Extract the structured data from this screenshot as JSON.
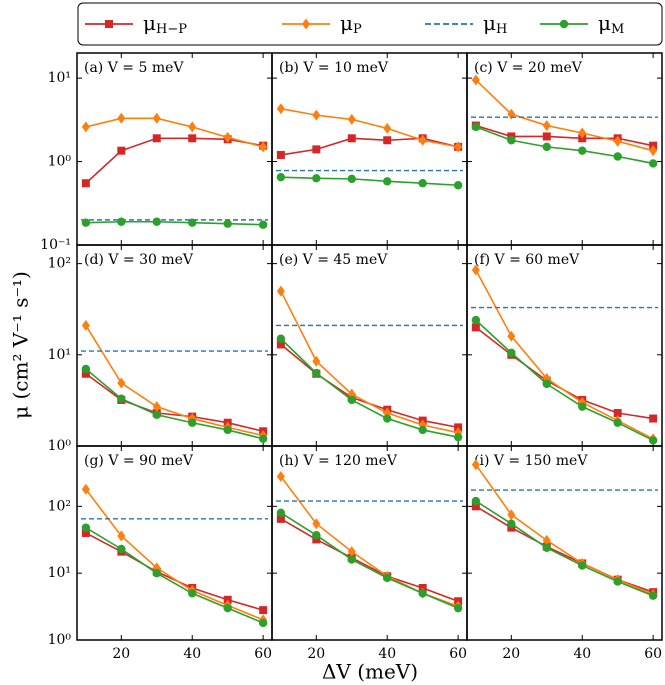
{
  "legend": [
    {
      "symbol": "μ",
      "sub": "H−P",
      "color": "#d62728",
      "marker": "square"
    },
    {
      "symbol": "μ",
      "sub": "P",
      "color": "#ff7f0e",
      "marker": "diamond"
    },
    {
      "symbol": "μ",
      "sub": "H",
      "color": "#1f77b4",
      "marker": "none",
      "dash": true
    },
    {
      "symbol": "μ",
      "sub": "M",
      "color": "#2ca02c",
      "marker": "circle"
    }
  ],
  "xlabel": "ΔV (meV)",
  "ylabel": "μ (cm² V⁻¹ s⁻¹)",
  "chart_data": [
    {
      "type": "line",
      "title": "(a) V = 5 meV",
      "yscale": "log",
      "x": [
        10,
        20,
        30,
        40,
        50,
        60
      ],
      "xlim": [
        7.5,
        62.5
      ],
      "ylim": [
        0.1,
        20
      ],
      "yticks": [
        {
          "value": 0.1,
          "label": "10⁻¹"
        },
        {
          "value": 1,
          "label": "10⁰"
        },
        {
          "value": 10,
          "label": "10¹"
        }
      ],
      "series": [
        {
          "values": [
            0.55,
            1.35,
            1.9,
            1.9,
            1.85,
            1.55
          ]
        },
        {
          "values": [
            2.6,
            3.3,
            3.3,
            2.6,
            1.95,
            1.5
          ]
        },
        {
          "value": 0.2
        },
        {
          "values": [
            0.185,
            0.19,
            0.19,
            0.185,
            0.18,
            0.175
          ]
        }
      ]
    },
    {
      "type": "line",
      "title": "(b) V = 10 meV",
      "yscale": "log",
      "x": [
        10,
        20,
        30,
        40,
        50,
        60
      ],
      "xlim": [
        7.5,
        62.5
      ],
      "ylim": [
        0.1,
        20
      ],
      "series": [
        {
          "values": [
            1.2,
            1.4,
            1.9,
            1.8,
            1.9,
            1.5
          ]
        },
        {
          "values": [
            4.3,
            3.6,
            3.2,
            2.5,
            1.8,
            1.5
          ]
        },
        {
          "value": 0.78
        },
        {
          "values": [
            0.65,
            0.63,
            0.62,
            0.58,
            0.55,
            0.52
          ]
        }
      ]
    },
    {
      "type": "line",
      "title": "(c) V = 20 meV",
      "yscale": "log",
      "x": [
        10,
        20,
        30,
        40,
        50,
        60
      ],
      "xlim": [
        7.5,
        62.5
      ],
      "ylim": [
        0.1,
        20
      ],
      "series": [
        {
          "values": [
            2.7,
            2.0,
            2.0,
            1.9,
            1.9,
            1.55
          ]
        },
        {
          "values": [
            9.5,
            3.7,
            2.7,
            2.2,
            1.75,
            1.35
          ]
        },
        {
          "value": 3.4
        },
        {
          "values": [
            2.6,
            1.8,
            1.5,
            1.35,
            1.15,
            0.95
          ]
        }
      ]
    },
    {
      "type": "line",
      "title": "(d) V = 30 meV",
      "yscale": "log",
      "x": [
        10,
        20,
        30,
        40,
        50,
        60
      ],
      "xlim": [
        7.5,
        62.5
      ],
      "ylim": [
        1,
        160
      ],
      "yticks": [
        {
          "value": 1,
          "label": "10⁰"
        },
        {
          "value": 10,
          "label": "10¹"
        },
        {
          "value": 100,
          "label": "10²"
        }
      ],
      "series": [
        {
          "values": [
            6.2,
            3.2,
            2.3,
            2.1,
            1.8,
            1.45
          ]
        },
        {
          "values": [
            21,
            4.9,
            2.7,
            2.0,
            1.6,
            1.3
          ]
        },
        {
          "value": 11
        },
        {
          "values": [
            7,
            3.3,
            2.2,
            1.8,
            1.5,
            1.2
          ]
        }
      ]
    },
    {
      "type": "line",
      "title": "(e) V = 45 meV",
      "yscale": "log",
      "x": [
        10,
        20,
        30,
        40,
        50,
        60
      ],
      "xlim": [
        7.5,
        62.5
      ],
      "ylim": [
        1,
        160
      ],
      "series": [
        {
          "values": [
            13,
            6.2,
            3.4,
            2.5,
            1.9,
            1.6
          ]
        },
        {
          "values": [
            50,
            8.5,
            3.7,
            2.3,
            1.7,
            1.4
          ]
        },
        {
          "value": 21
        },
        {
          "values": [
            15,
            6.3,
            3.2,
            2.0,
            1.5,
            1.25
          ]
        }
      ]
    },
    {
      "type": "line",
      "title": "(f) V = 60 meV",
      "yscale": "log",
      "x": [
        10,
        20,
        30,
        40,
        50,
        60
      ],
      "xlim": [
        7.5,
        62.5
      ],
      "ylim": [
        1,
        160
      ],
      "series": [
        {
          "values": [
            20,
            10,
            5.2,
            3.2,
            2.3,
            2.0
          ]
        },
        {
          "values": [
            85,
            16,
            5.5,
            3.0,
            1.9,
            1.2
          ]
        },
        {
          "value": 33
        },
        {
          "values": [
            24,
            10.5,
            4.8,
            2.7,
            1.8,
            1.15
          ]
        }
      ]
    },
    {
      "type": "line",
      "title": "(g) V = 90 meV",
      "yscale": "log",
      "x": [
        10,
        20,
        30,
        40,
        50,
        60
      ],
      "xlim": [
        7.5,
        62.5
      ],
      "ylim": [
        1,
        800
      ],
      "xticks": [
        20,
        40,
        60
      ],
      "yticks": [
        {
          "value": 1,
          "label": "10⁰"
        },
        {
          "value": 10,
          "label": "10¹"
        },
        {
          "value": 100,
          "label": "10²"
        }
      ],
      "series": [
        {
          "values": [
            40,
            21,
            10.5,
            6,
            4,
            2.8
          ]
        },
        {
          "values": [
            180,
            36,
            12,
            5.5,
            3.3,
            2
          ]
        },
        {
          "value": 65
        },
        {
          "values": [
            48,
            23,
            10,
            5,
            3,
            1.8
          ]
        }
      ]
    },
    {
      "type": "line",
      "title": "(h) V = 120 meV",
      "yscale": "log",
      "x": [
        10,
        20,
        30,
        40,
        50,
        60
      ],
      "xlim": [
        7.5,
        62.5
      ],
      "ylim": [
        1,
        800
      ],
      "xticks": [
        20,
        40,
        60
      ],
      "series": [
        {
          "values": [
            65,
            32,
            17,
            9,
            6,
            3.8
          ]
        },
        {
          "values": [
            280,
            55,
            21,
            9,
            5,
            3.2
          ]
        },
        {
          "value": 120
        },
        {
          "values": [
            80,
            37,
            16,
            8.5,
            5,
            3
          ]
        }
      ]
    },
    {
      "type": "line",
      "title": "(i) V = 150 meV",
      "yscale": "log",
      "x": [
        10,
        20,
        30,
        40,
        50,
        60
      ],
      "xlim": [
        7.5,
        62.5
      ],
      "ylim": [
        1,
        800
      ],
      "xticks": [
        20,
        40,
        60
      ],
      "series": [
        {
          "values": [
            100,
            48,
            25,
            14,
            8,
            5.2
          ]
        },
        {
          "values": [
            420,
            75,
            31,
            14,
            8,
            4.8
          ]
        },
        {
          "value": 175
        },
        {
          "values": [
            120,
            55,
            24,
            13,
            7.5,
            4.6
          ]
        }
      ]
    }
  ]
}
